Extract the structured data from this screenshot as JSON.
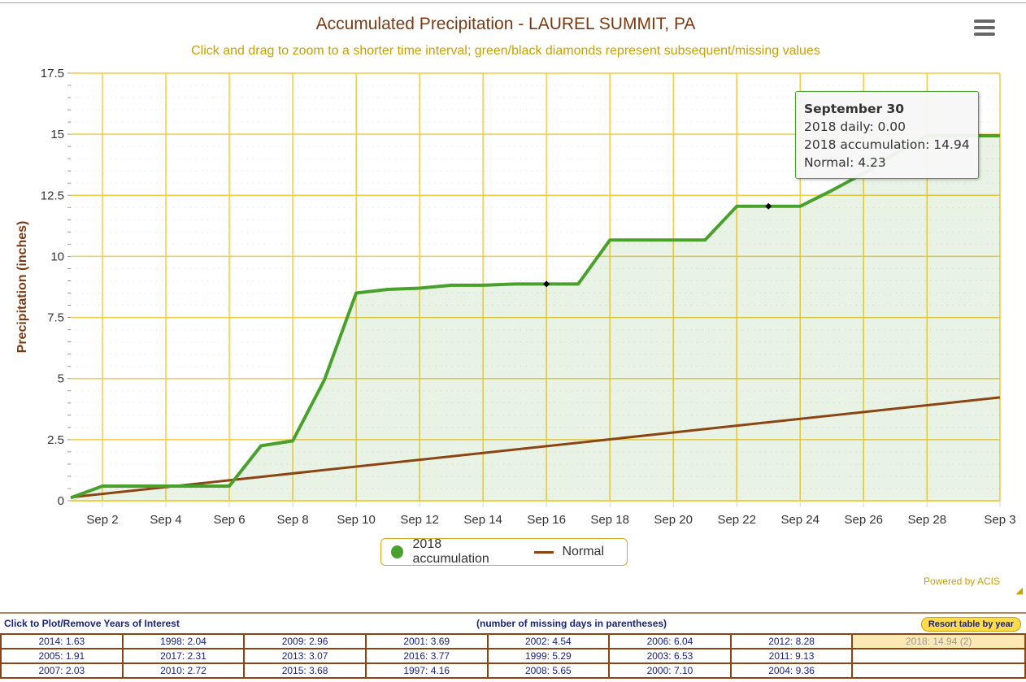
{
  "title": "Accumulated Precipitation - LAUREL SUMMIT, PA",
  "subtitle": "Click and drag to zoom to a shorter time interval; green/black diamonds represent subsequent/missing values",
  "menu_icon": "hamburger-menu-icon",
  "tooltip": {
    "title": "September 30",
    "daily": "2018 daily: 0.00",
    "accum": "2018 accumulation: 14.94",
    "normal": "Normal: 4.23"
  },
  "legend": {
    "series1": "2018 accumulation",
    "series2": "Normal"
  },
  "powered": "Powered by ACIS",
  "chart_data": {
    "type": "line",
    "title": "Accumulated Precipitation - LAUREL SUMMIT, PA",
    "ylabel": "Precipitation (inches)",
    "xlabel": "",
    "ylim": [
      0,
      17.5
    ],
    "yticks": [
      "0",
      "2.5",
      "5",
      "7.5",
      "10",
      "12.5",
      "15",
      "17.5"
    ],
    "xticks": [
      "Sep 2",
      "Sep 4",
      "Sep 6",
      "Sep 8",
      "Sep 10",
      "Sep 12",
      "Sep 14",
      "Sep 16",
      "Sep 18",
      "Sep 20",
      "Sep 22",
      "Sep 24",
      "Sep 26",
      "Sep 28",
      "Sep 3"
    ],
    "x": [
      1,
      2,
      3,
      4,
      5,
      6,
      7,
      8,
      9,
      10,
      11,
      12,
      13,
      14,
      15,
      16,
      17,
      18,
      19,
      20,
      21,
      22,
      23,
      24,
      25,
      26,
      27,
      28,
      29,
      30
    ],
    "series": [
      {
        "name": "2018 accumulation",
        "color": "#4aa02c",
        "values": [
          0.12,
          0.6,
          0.6,
          0.6,
          0.6,
          0.6,
          2.25,
          2.45,
          4.95,
          8.5,
          8.65,
          8.7,
          8.82,
          8.82,
          8.87,
          8.87,
          8.87,
          10.67,
          10.67,
          10.67,
          10.67,
          12.05,
          12.05,
          12.05,
          12.7,
          13.4,
          14.2,
          14.94,
          14.94,
          14.94
        ],
        "missing_days": [
          16,
          23
        ]
      },
      {
        "name": "Normal",
        "color": "#8b4513",
        "values_start": 0.14,
        "values_end": 4.23
      }
    ]
  },
  "table": {
    "header_left": "Click to Plot/Remove Years of Interest",
    "header_mid": "(number of missing days in parentheses)",
    "resort": "Resort table by year",
    "rows": [
      [
        "2014: 1.63",
        "1998: 2.04",
        "2009: 2.96",
        "2001: 3.69",
        "2002: 4.54",
        "2006: 6.04",
        "2012: 8.28",
        "2018: 14.94 (2)"
      ],
      [
        "2005: 1.91",
        "2017: 2.31",
        "2013: 3.07",
        "2016: 3.77",
        "1999: 5.29",
        "2003: 6.53",
        "2011: 9.13",
        ""
      ],
      [
        "2007: 2.03",
        "2010: 2.72",
        "2015: 3.68",
        "1997: 4.16",
        "2008: 5.65",
        "2000: 7.10",
        "2004: 9.36",
        ""
      ]
    ]
  }
}
